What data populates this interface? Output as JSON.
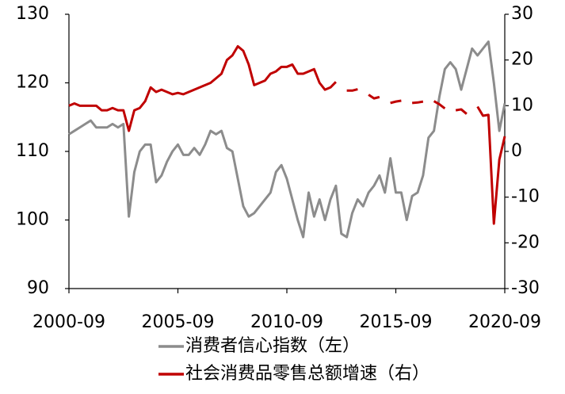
{
  "chart_data": {
    "type": "line",
    "x": [
      "2000-09",
      "2000-12",
      "2001-03",
      "2001-06",
      "2001-09",
      "2001-12",
      "2002-03",
      "2002-06",
      "2002-09",
      "2002-12",
      "2003-03",
      "2003-06",
      "2003-09",
      "2003-12",
      "2004-03",
      "2004-06",
      "2004-09",
      "2004-12",
      "2005-03",
      "2005-06",
      "2005-09",
      "2005-12",
      "2006-03",
      "2006-06",
      "2006-09",
      "2006-12",
      "2007-03",
      "2007-06",
      "2007-09",
      "2007-12",
      "2008-03",
      "2008-06",
      "2008-09",
      "2008-12",
      "2009-03",
      "2009-06",
      "2009-09",
      "2009-12",
      "2010-03",
      "2010-06",
      "2010-09",
      "2010-12",
      "2011-03",
      "2011-06",
      "2011-09",
      "2011-12",
      "2012-03",
      "2012-06",
      "2012-09",
      "2012-12",
      "2013-03",
      "2013-06",
      "2013-09",
      "2013-12",
      "2014-03",
      "2014-06",
      "2014-09",
      "2014-12",
      "2015-03",
      "2015-06",
      "2015-09",
      "2015-12",
      "2016-03",
      "2016-06",
      "2016-09",
      "2016-12",
      "2017-03",
      "2017-06",
      "2017-09",
      "2017-12",
      "2018-03",
      "2018-06",
      "2018-09",
      "2018-12",
      "2019-03",
      "2019-06",
      "2019-09",
      "2019-12",
      "2020-03",
      "2020-06",
      "2020-09"
    ],
    "series": [
      {
        "name": "消费者信心指数（左）",
        "color": "#8c8c8c",
        "axis": "y",
        "values": [
          112.5,
          113,
          113.5,
          114,
          114.5,
          113.5,
          113.5,
          113.5,
          114,
          113.5,
          114,
          100.5,
          107,
          110,
          111,
          111,
          105.5,
          106.5,
          108.5,
          110,
          111,
          109.5,
          109.5,
          110.5,
          109.5,
          111,
          113,
          112.5,
          113,
          110.5,
          110,
          106,
          102,
          100.5,
          101,
          102,
          103,
          104,
          107,
          108,
          106,
          103,
          100,
          97.5,
          104,
          100.5,
          103,
          100,
          103,
          105,
          98,
          97.5,
          101,
          103,
          102,
          104,
          105,
          106.5,
          104,
          109,
          104,
          104,
          100,
          103.5,
          104,
          106.5,
          112,
          113,
          118,
          122,
          123,
          122,
          119,
          122,
          125,
          124,
          125,
          126,
          120,
          113,
          117
        ]
      },
      {
        "name": "社会消费品零售总额增速（右）",
        "color": "#c00000",
        "axis": "y2",
        "values": [
          10,
          10.5,
          10,
          10,
          10,
          10,
          9,
          9,
          9.5,
          9,
          9,
          4.5,
          9,
          9.5,
          11,
          14,
          13,
          13.5,
          13,
          12.5,
          12.8,
          12.5,
          13,
          13.5,
          14,
          14.5,
          15,
          16,
          17,
          20,
          21,
          23,
          22,
          19,
          14.5,
          15,
          15.5,
          17,
          17.5,
          18.5,
          18.5,
          19,
          17,
          17,
          17.5,
          18,
          15,
          13.5,
          14,
          15.2,
          null,
          13.3,
          13.3,
          13.6,
          null,
          12.4,
          11.6,
          11.9,
          null,
          10.6,
          10.9,
          11.1,
          null,
          10.6,
          10.7,
          10.9,
          null,
          11,
          10.3,
          9.4,
          null,
          9,
          9.2,
          8.2,
          null,
          9.8,
          7.8,
          8,
          -15.8,
          -1.8,
          3.3
        ]
      }
    ],
    "xlim": [
      "2000-09",
      "2020-09"
    ],
    "xticks": [
      "2000-09",
      "2005-09",
      "2010-09",
      "2015-09",
      "2020-09"
    ],
    "ylim": [
      90,
      130
    ],
    "yticks": [
      90,
      100,
      110,
      120,
      130
    ],
    "y2lim": [
      -30,
      30
    ],
    "y2ticks": [
      -30,
      -20,
      -10,
      0,
      10,
      20,
      30
    ],
    "grid": false
  }
}
